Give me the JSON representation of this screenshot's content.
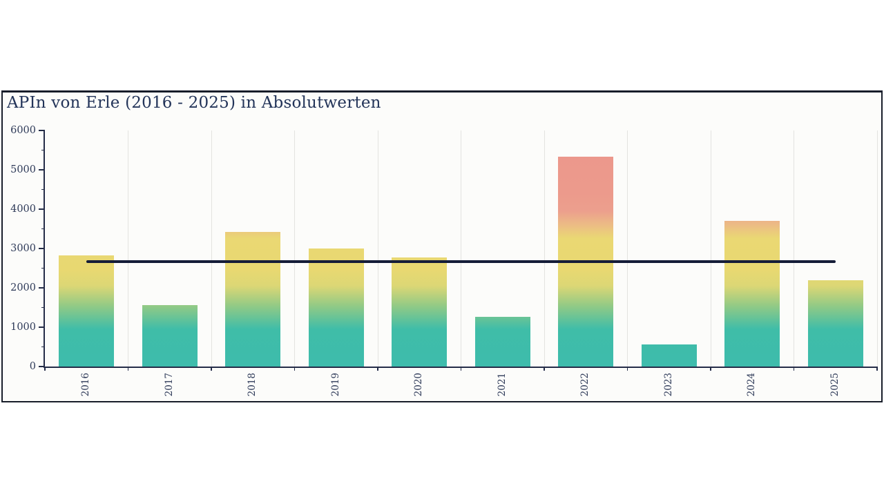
{
  "chart_data": {
    "type": "bar",
    "title": "APIn von Erle (2016 - 2025) in Absolutwerten",
    "categories": [
      "2016",
      "2017",
      "2018",
      "2019",
      "2020",
      "2021",
      "2022",
      "2023",
      "2024",
      "2025"
    ],
    "values": [
      2830,
      1560,
      3430,
      3000,
      2770,
      1260,
      5330,
      570,
      3700,
      2190
    ],
    "xlabel": "",
    "ylabel": "",
    "ylim": [
      0,
      6000
    ],
    "ytick_step": 1000,
    "ytick_labels": [
      "0",
      "1000",
      "2000",
      "3000",
      "4000",
      "5000",
      "6000"
    ],
    "ytick_minor_step": 500,
    "grid": "vertical-category-boundaries-only",
    "legend_position": "none",
    "mean_line": {
      "value": 2664,
      "color": "#151D38"
    },
    "bar_gradient_colormap": [
      {
        "value": 0,
        "color": "#3EBCAC"
      },
      {
        "value": 950,
        "color": "#3FBDA8"
      },
      {
        "value": 1550,
        "color": "#93CA85"
      },
      {
        "value": 2050,
        "color": "#DCD775"
      },
      {
        "value": 2450,
        "color": "#E8D871"
      },
      {
        "value": 3250,
        "color": "#EAD873"
      },
      {
        "value": 3600,
        "color": "#ECBC85"
      },
      {
        "value": 3950,
        "color": "#EC9F8D"
      },
      {
        "value": 4400,
        "color": "#EC9A8C"
      },
      {
        "value": 6000,
        "color": "#EB978C"
      }
    ],
    "colors": {
      "title_text": "#233459",
      "axis": "#232B47",
      "tick_labels": "#2E3A58",
      "gridline": "#E3E3E0",
      "figure_border": "#171C29",
      "figure_background": "#FCFCFA"
    }
  }
}
